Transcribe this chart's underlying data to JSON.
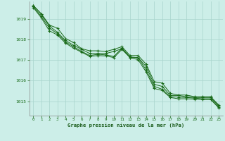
{
  "background_color": "#cceee8",
  "plot_bg_color": "#cceee8",
  "grid_color": "#a8d4cc",
  "line_color": "#1a6b1a",
  "marker_color": "#1a6b1a",
  "xlabel": "Graphe pression niveau de la mer (hPa)",
  "xlabel_color": "#1a5c1a",
  "tick_color": "#1a6b1a",
  "xlim": [
    -0.5,
    23.5
  ],
  "ylim": [
    1014.3,
    1019.85
  ],
  "yticks": [
    1015,
    1016,
    1017,
    1018,
    1019
  ],
  "xticks": [
    0,
    1,
    2,
    3,
    4,
    5,
    6,
    7,
    8,
    9,
    10,
    11,
    12,
    13,
    14,
    15,
    16,
    17,
    18,
    19,
    20,
    21,
    22,
    23
  ],
  "series": [
    [
      1019.65,
      1019.25,
      1018.7,
      1018.55,
      1018.05,
      1017.85,
      1017.55,
      1017.45,
      1017.45,
      1017.42,
      1017.52,
      1017.65,
      1017.22,
      1017.22,
      1016.8,
      1015.95,
      1015.88,
      1015.38,
      1015.3,
      1015.3,
      1015.22,
      1015.22,
      1015.22,
      1014.82
    ],
    [
      1019.65,
      1019.22,
      1018.65,
      1018.35,
      1017.95,
      1017.72,
      1017.52,
      1017.32,
      1017.32,
      1017.32,
      1017.42,
      1017.55,
      1017.12,
      1017.12,
      1016.68,
      1015.82,
      1015.72,
      1015.28,
      1015.28,
      1015.22,
      1015.18,
      1015.18,
      1015.18,
      1014.78
    ],
    [
      1019.6,
      1019.12,
      1018.55,
      1018.28,
      1017.88,
      1017.65,
      1017.42,
      1017.22,
      1017.28,
      1017.25,
      1017.18,
      1017.58,
      1017.15,
      1017.12,
      1016.52,
      1015.72,
      1015.58,
      1015.22,
      1015.2,
      1015.18,
      1015.15,
      1015.12,
      1015.12,
      1014.72
    ],
    [
      1019.55,
      1019.05,
      1018.42,
      1018.22,
      1017.82,
      1017.58,
      1017.38,
      1017.18,
      1017.22,
      1017.2,
      1017.12,
      1017.52,
      1017.12,
      1017.02,
      1016.42,
      1015.62,
      1015.52,
      1015.18,
      1015.12,
      1015.12,
      1015.1,
      1015.08,
      1015.08,
      1014.68
    ]
  ]
}
